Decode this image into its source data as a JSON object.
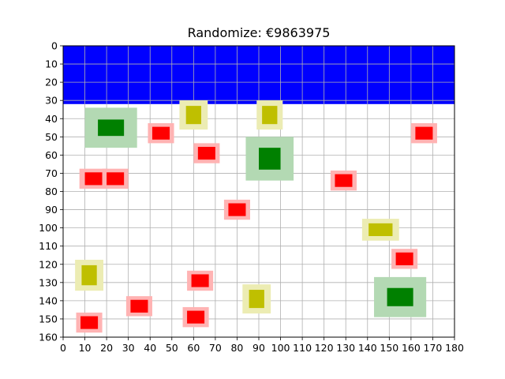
{
  "title": "Randomize: €9863975",
  "chart_data": {
    "type": "scatter",
    "xlim": [
      0,
      180
    ],
    "ylim": [
      0,
      160
    ],
    "y_inverted": true,
    "grid": true,
    "x_ticks": [
      "0",
      "10",
      "20",
      "30",
      "40",
      "50",
      "60",
      "70",
      "80",
      "90",
      "100",
      "110",
      "120",
      "130",
      "140",
      "150",
      "160",
      "170",
      "180"
    ],
    "y_ticks": [
      "0",
      "10",
      "20",
      "30",
      "40",
      "50",
      "60",
      "70",
      "80",
      "90",
      "100",
      "110",
      "120",
      "130",
      "140",
      "150",
      "160"
    ],
    "banner": {
      "x0": 0,
      "x1": 180,
      "y0": 0,
      "y1": 32,
      "color": "#0000ff"
    },
    "colors": {
      "red_core": "#ff0000",
      "red_halo": "#ffb3b3",
      "green_core": "#008000",
      "green_halo": "#b3d9b3",
      "olive_core": "#bfbf00",
      "olive_halo": "#ececb3"
    },
    "items": [
      {
        "kind": "green",
        "x": 22,
        "y": 45,
        "w": 12,
        "h": 9,
        "hw": 24,
        "hh": 22
      },
      {
        "kind": "green",
        "x": 95,
        "y": 62,
        "w": 10,
        "h": 12,
        "hw": 22,
        "hh": 24
      },
      {
        "kind": "green",
        "x": 155,
        "y": 138,
        "w": 12,
        "h": 10,
        "hw": 24,
        "hh": 22
      },
      {
        "kind": "olive",
        "x": 60,
        "y": 38,
        "w": 7,
        "h": 10,
        "hw": 13,
        "hh": 16
      },
      {
        "kind": "olive",
        "x": 95,
        "y": 38,
        "w": 7,
        "h": 10,
        "hw": 12,
        "hh": 16
      },
      {
        "kind": "olive",
        "x": 146,
        "y": 101,
        "w": 11,
        "h": 7,
        "hw": 17,
        "hh": 12
      },
      {
        "kind": "olive",
        "x": 12,
        "y": 126,
        "w": 7,
        "h": 11,
        "hw": 13,
        "hh": 17
      },
      {
        "kind": "olive",
        "x": 89,
        "y": 139,
        "w": 7,
        "h": 10,
        "hw": 13,
        "hh": 16
      },
      {
        "kind": "red",
        "x": 45,
        "y": 48,
        "w": 8,
        "h": 7,
        "hw": 12,
        "hh": 11
      },
      {
        "kind": "red",
        "x": 66,
        "y": 59,
        "w": 8,
        "h": 7,
        "hw": 12,
        "hh": 11
      },
      {
        "kind": "red",
        "x": 166,
        "y": 48,
        "w": 8,
        "h": 7,
        "hw": 12,
        "hh": 11
      },
      {
        "kind": "red",
        "x": 14,
        "y": 73,
        "w": 8,
        "h": 7,
        "hw": 13,
        "hh": 11
      },
      {
        "kind": "red",
        "x": 24,
        "y": 73,
        "w": 8,
        "h": 7,
        "hw": 12,
        "hh": 11
      },
      {
        "kind": "red",
        "x": 129,
        "y": 74,
        "w": 8,
        "h": 7,
        "hw": 12,
        "hh": 11
      },
      {
        "kind": "red",
        "x": 80,
        "y": 90,
        "w": 8,
        "h": 7,
        "hw": 12,
        "hh": 11
      },
      {
        "kind": "red",
        "x": 157,
        "y": 117,
        "w": 8,
        "h": 7,
        "hw": 12,
        "hh": 11
      },
      {
        "kind": "red",
        "x": 63,
        "y": 129,
        "w": 8,
        "h": 7,
        "hw": 12,
        "hh": 11
      },
      {
        "kind": "red",
        "x": 35,
        "y": 143,
        "w": 8,
        "h": 7,
        "hw": 12,
        "hh": 11
      },
      {
        "kind": "red",
        "x": 61,
        "y": 149,
        "w": 8,
        "h": 7,
        "hw": 12,
        "hh": 11
      },
      {
        "kind": "red",
        "x": 12,
        "y": 152,
        "w": 8,
        "h": 7,
        "hw": 12,
        "hh": 11
      }
    ]
  }
}
